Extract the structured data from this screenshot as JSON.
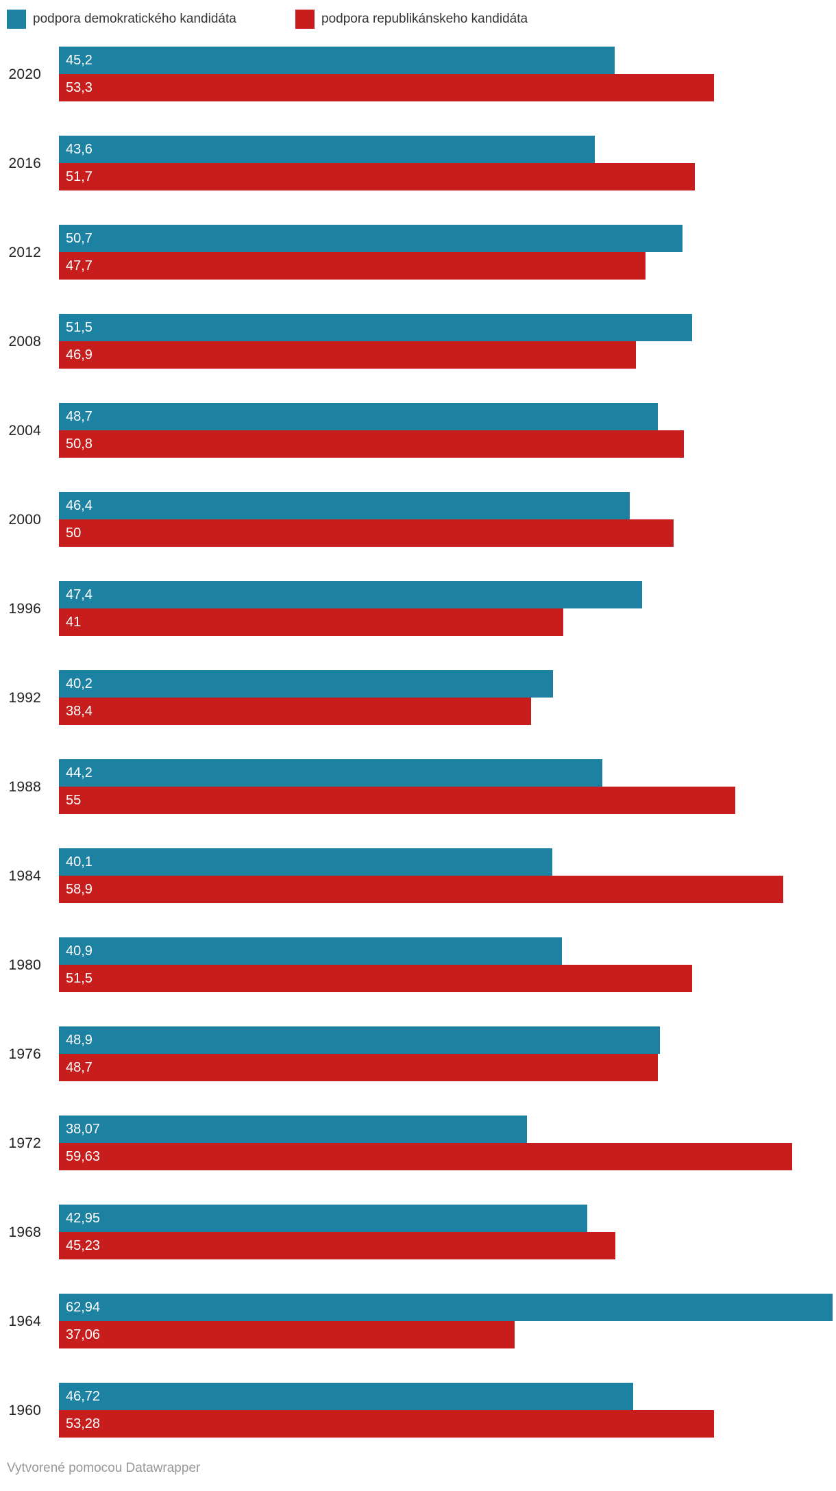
{
  "legend": {
    "items": [
      {
        "label": "podpora demokratického kandidáta",
        "color": "#1d81a2"
      },
      {
        "label": "podpora republikánskeho kandidáta",
        "color": "#c71e1d"
      }
    ]
  },
  "chart_data": {
    "type": "bar",
    "orientation": "horizontal",
    "categories": [
      "2020",
      "2016",
      "2012",
      "2008",
      "2004",
      "2000",
      "1996",
      "1992",
      "1988",
      "1984",
      "1980",
      "1976",
      "1972",
      "1968",
      "1964",
      "1960"
    ],
    "series": [
      {
        "name": "podpora demokratického kandidáta",
        "color": "#1d81a2",
        "values": [
          45.2,
          43.6,
          50.7,
          51.5,
          48.7,
          46.4,
          47.4,
          40.2,
          44.2,
          40.1,
          40.9,
          48.9,
          38.07,
          42.95,
          62.94,
          46.72
        ],
        "labels": [
          "45,2",
          "43,6",
          "50,7",
          "51,5",
          "48,7",
          "46,4",
          "47,4",
          "40,2",
          "44,2",
          "40,1",
          "40,9",
          "48,9",
          "38,07",
          "42,95",
          "62,94",
          "46,72"
        ]
      },
      {
        "name": "podpora republikánskeho kandidáta",
        "color": "#c71e1d",
        "values": [
          53.3,
          51.7,
          47.7,
          46.9,
          50.8,
          50,
          41,
          38.4,
          55,
          58.9,
          51.5,
          48.7,
          59.63,
          45.23,
          37.06,
          53.28
        ],
        "labels": [
          "53,3",
          "51,7",
          "47,7",
          "46,9",
          "50,8",
          "50",
          "41",
          "38,4",
          "55",
          "58,9",
          "51,5",
          "48,7",
          "59,63",
          "45,23",
          "37,06",
          "53,28"
        ]
      }
    ],
    "xlim": [
      0,
      63.2
    ],
    "grid": false,
    "legend_position": "top-left",
    "value_labels_inside_bars": true,
    "title": "",
    "xlabel": "",
    "ylabel": ""
  },
  "footer": {
    "attribution": "Vytvorené pomocou Datawrapper"
  }
}
